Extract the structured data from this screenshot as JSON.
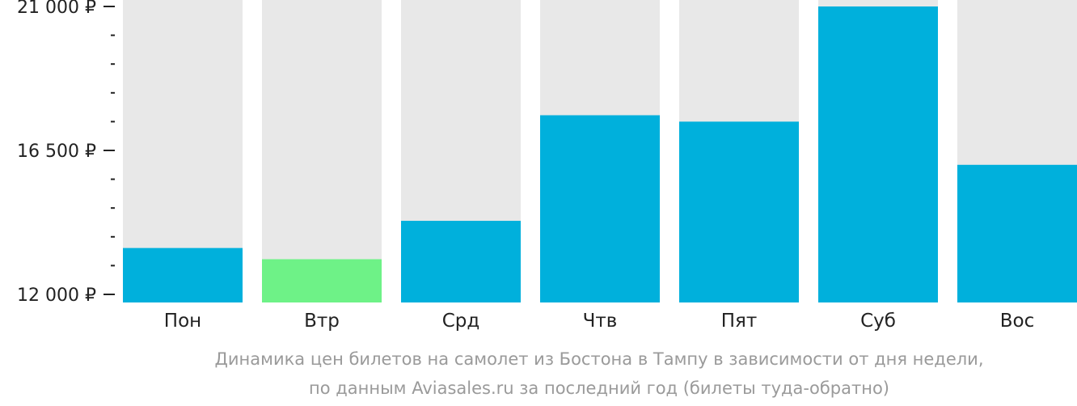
{
  "chart_data": {
    "type": "bar",
    "categories": [
      "Пон",
      "Втр",
      "Срд",
      "Чтв",
      "Пят",
      "Суб",
      "Вос"
    ],
    "values": [
      13450,
      13100,
      14300,
      17600,
      17400,
      21000,
      16050
    ],
    "ylim": [
      12000,
      21000
    ],
    "y_ticks": [
      {
        "value": 12000,
        "label": "12 000 ₽"
      },
      {
        "value": 16500,
        "label": "16 500 ₽"
      },
      {
        "value": 21000,
        "label": "21 000 ₽"
      }
    ],
    "y_minor_ticks": [
      12900,
      13800,
      14700,
      15600,
      17400,
      18300,
      19200,
      20100
    ],
    "highlight_index": 1,
    "grid": false,
    "legend": "none"
  },
  "caption": {
    "line1": "Динамика цен билетов на самолет из Бостона в Тампу в зависимости от дня недели,",
    "line2": "по данным Aviasales.ru за последний год (билеты туда-обратно)"
  },
  "colors": {
    "bar": "#00b0dc",
    "bar_highlight": "#6ef287",
    "bar_background": "#e8e8e8",
    "axis_text": "#222222",
    "caption_text": "#9a9a9a"
  }
}
